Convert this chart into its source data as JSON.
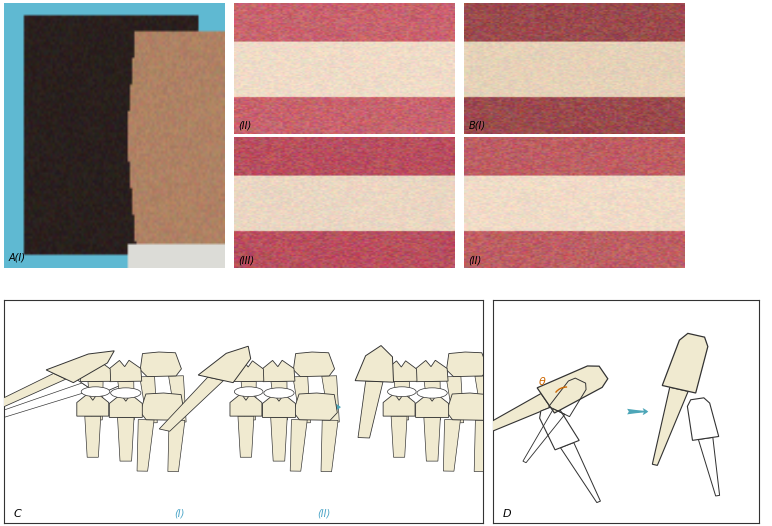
{
  "fig_width": 7.72,
  "fig_height": 5.26,
  "dpi": 100,
  "background": "#ffffff",
  "border_color": "#333333",
  "label_color_sub": "#4da6c8",
  "arrow_color": "#4da6b8",
  "tooth_fill": "#f0ead0",
  "tooth_fill2": "#f5f0dc",
  "tooth_white": "#ffffff",
  "tooth_stroke": "#333333",
  "labels": {
    "A_i": "A(I)",
    "B_ii_top": "(II)",
    "B_iii_bot": "(III)",
    "B_i_top": "B(I)",
    "B_ii_bot": "(II)",
    "C": "C",
    "C_i": "(I)",
    "C_ii": "(II)",
    "D": "D"
  },
  "photo_A": {
    "sky": [
      95,
      185,
      210
    ],
    "hair": [
      42,
      32,
      30
    ],
    "skin": [
      175,
      130,
      100
    ]
  },
  "photo_Mc": {
    "base": [
      195,
      120,
      120
    ],
    "gum": [
      200,
      100,
      110
    ],
    "teeth": [
      240,
      220,
      200
    ]
  },
  "photo_Mb": {
    "base": [
      180,
      90,
      100
    ],
    "gum": [
      185,
      80,
      95
    ],
    "teeth": [
      235,
      215,
      195
    ]
  },
  "photo_Rc": {
    "base": [
      160,
      80,
      80
    ],
    "gum": [
      155,
      75,
      78
    ],
    "teeth": [
      230,
      210,
      185
    ]
  },
  "photo_Rb": {
    "base": [
      185,
      100,
      105
    ],
    "gum": [
      190,
      95,
      100
    ],
    "teeth": [
      240,
      220,
      200
    ]
  }
}
